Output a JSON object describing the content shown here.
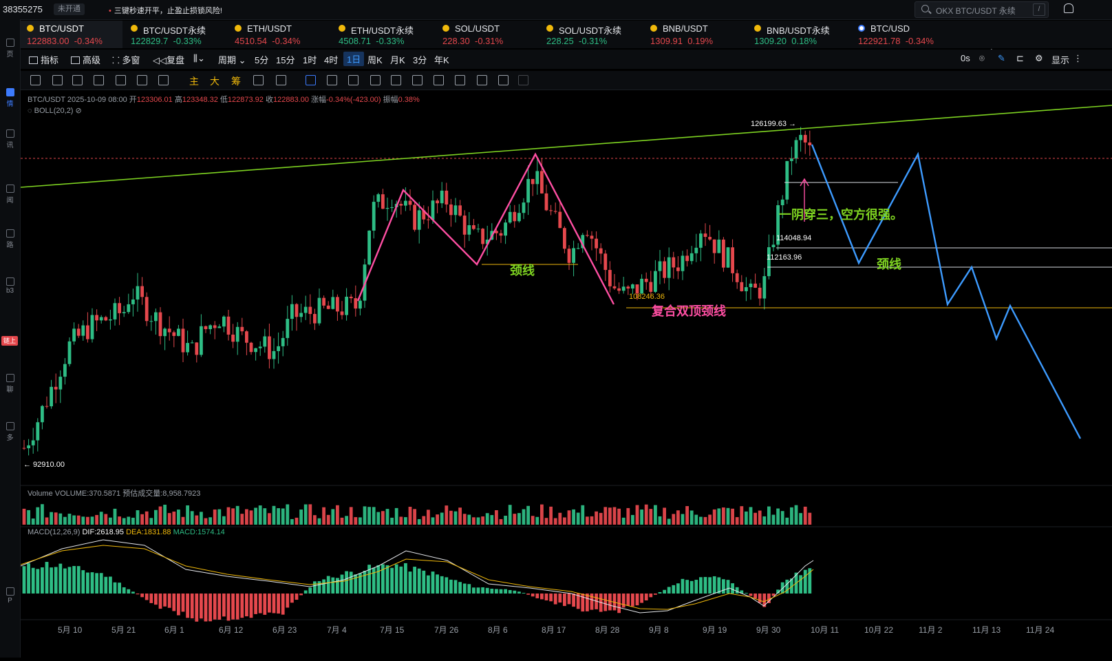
{
  "topbar": {
    "account_id": "38355275",
    "status_badge": "未开通",
    "promo": "三键秒速开平，止盈止损锁风险!",
    "search_placeholder": "OKX BTC/USDT 永续",
    "search_shortcut": "/"
  },
  "left_rail": {
    "items": [
      "页",
      "情",
      "讯",
      "闻",
      "路",
      "b3",
      "链上",
      "聊",
      "多",
      "P"
    ],
    "active_index": 1
  },
  "tabs": [
    {
      "name": "BTC/USDT",
      "price": "122883.00",
      "change": "-0.34%",
      "dir": "dn",
      "active": true
    },
    {
      "name": "BTC/USDT永续",
      "price": "122829.7",
      "change": "-0.33%",
      "dir": "up"
    },
    {
      "name": "ETH/USDT",
      "price": "4510.54",
      "change": "-0.34%",
      "dir": "dn"
    },
    {
      "name": "ETH/USDT永续",
      "price": "4508.71",
      "change": "-0.33%",
      "dir": "up"
    },
    {
      "name": "SOL/USDT",
      "price": "228.30",
      "change": "-0.31%",
      "dir": "dn"
    },
    {
      "name": "SOL/USDT永续",
      "price": "228.25",
      "change": "-0.31%",
      "dir": "up"
    },
    {
      "name": "BNB/USDT",
      "price": "1309.91",
      "change": "0.19%",
      "dir": "dn"
    },
    {
      "name": "BNB/USDT永续",
      "price": "1309.20",
      "change": "0.18%",
      "dir": "up"
    },
    {
      "name": "BTC/USD",
      "price": "122921.78",
      "change": "-0.34%",
      "dir": "dn"
    }
  ],
  "toolbar": {
    "indicators": "指标",
    "advanced": "高级",
    "multi_window": "多窗",
    "replay": "复盘",
    "period": "周期",
    "intervals": [
      "5分",
      "15分",
      "1时",
      "4时",
      "1日",
      "周K",
      "月K",
      "3分",
      "年K"
    ],
    "selected_interval": "1日",
    "seconds": "0s",
    "display": "显示",
    "row2_chars": [
      "主",
      "大",
      "筹"
    ]
  },
  "legend": {
    "symbol": "BTC/USDT",
    "datetime": "2025-10-09 08:00",
    "open_label": "开",
    "open": "123306.01",
    "high_label": "高",
    "high": "123348.32",
    "low_label": "低",
    "low": "122873.92",
    "close_label": "收",
    "close": "122883.00",
    "chg_label": "涨幅",
    "chg": "-0.34%(-423.00)",
    "amp_label": "振幅",
    "amp": "0.38%",
    "boll": "BOLL(20,2)"
  },
  "volume_legend": {
    "label": "Volume",
    "volume": "VOLUME:370.5871",
    "estimate": "预估成交量:8,958.7923"
  },
  "macd_legend": {
    "label": "MACD(12,26,9)",
    "dif": "DIF:2618.95",
    "dea": "DEA:1831.88",
    "macd": "MACD:1574.14"
  },
  "annotations": {
    "high_price": "126199.63",
    "low_price": "92910.00",
    "price_114": "114048.94",
    "price_112": "112163.96",
    "price_108": "108246.36",
    "neckline1": "颈线",
    "neckline2": "颈线",
    "compound_neck": "复合双顶颈线",
    "comment": "一阴穿三，空方很强。"
  },
  "x_axis": [
    "5月 10",
    "5月 21",
    "6月 1",
    "6月 12",
    "6月 23",
    "7月 4",
    "7月 15",
    "7月 26",
    "8月 6",
    "8月 17",
    "8月 28",
    "9月 8",
    "9月 19",
    "9月 30",
    "10月 11",
    "10月 22",
    "11月 2",
    "11月 13",
    "11月 24"
  ],
  "colors": {
    "up": "#2ebd85",
    "down": "#e5484d",
    "trendline": "#7ed321",
    "pattern": "#ff4fa3",
    "forecast": "#3d9bff",
    "neckline": "#f0b90b"
  }
}
